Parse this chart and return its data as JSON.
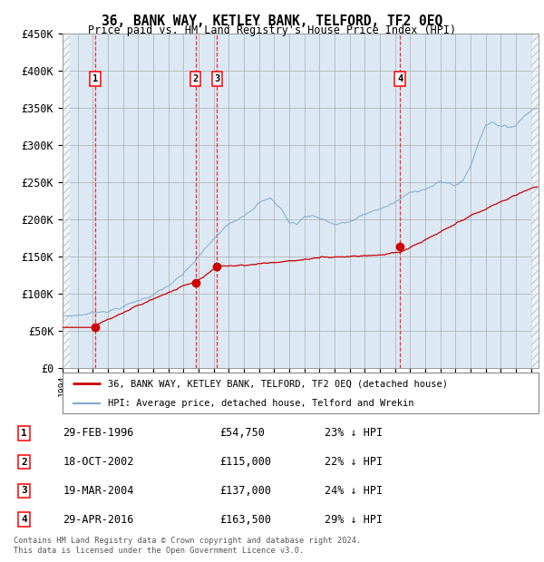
{
  "title": "36, BANK WAY, KETLEY BANK, TELFORD, TF2 0EQ",
  "subtitle": "Price paid vs. HM Land Registry's House Price Index (HPI)",
  "ylim": [
    0,
    450000
  ],
  "yticks": [
    0,
    50000,
    100000,
    150000,
    200000,
    250000,
    300000,
    350000,
    400000,
    450000
  ],
  "ytick_labels": [
    "£0",
    "£50K",
    "£100K",
    "£150K",
    "£200K",
    "£250K",
    "£300K",
    "£350K",
    "£400K",
    "£450K"
  ],
  "xlim_start": 1994.0,
  "xlim_end": 2025.5,
  "hatch_end": 1994.5,
  "hatch_start_right": 2025.0,
  "background_color": "#dce9f5",
  "sale_line_color": "#cc0000",
  "hpi_line_color": "#7faacc",
  "purchases": [
    {
      "num": 1,
      "date_x": 1996.16,
      "price": 54750
    },
    {
      "num": 2,
      "date_x": 2002.8,
      "price": 115000
    },
    {
      "num": 3,
      "date_x": 2004.22,
      "price": 137000
    },
    {
      "num": 4,
      "date_x": 2016.33,
      "price": 163500
    }
  ],
  "legend_sale_label": "36, BANK WAY, KETLEY BANK, TELFORD, TF2 0EQ (detached house)",
  "legend_hpi_label": "HPI: Average price, detached house, Telford and Wrekin",
  "table_rows": [
    {
      "num": 1,
      "date": "29-FEB-1996",
      "price": "£54,750",
      "hpi": "23% ↓ HPI"
    },
    {
      "num": 2,
      "date": "18-OCT-2002",
      "price": "£115,000",
      "hpi": "22% ↓ HPI"
    },
    {
      "num": 3,
      "date": "19-MAR-2004",
      "price": "£137,000",
      "hpi": "24% ↓ HPI"
    },
    {
      "num": 4,
      "date": "29-APR-2016",
      "price": "£163,500",
      "hpi": "29% ↓ HPI"
    }
  ],
  "footer": "Contains HM Land Registry data © Crown copyright and database right 2024.\nThis data is licensed under the Open Government Licence v3.0."
}
